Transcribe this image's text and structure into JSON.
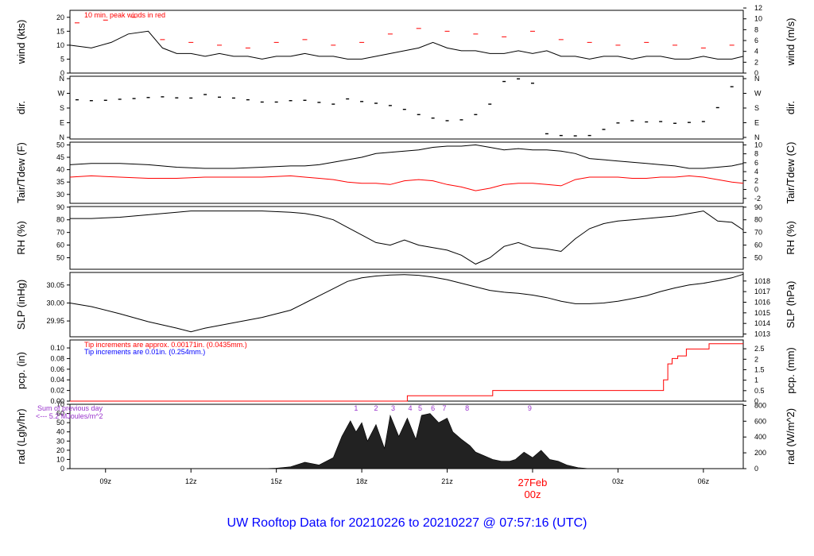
{
  "colors": {
    "axis": "#000000",
    "peak": "#ff0000",
    "note_blue": "#0000ff",
    "note_purple": "#9933cc",
    "footer": "#0000ff",
    "date": "#ff0000"
  },
  "footer_title": "UW Rooftop Data for 20210226  to  20210227 @ 07:57:16  (UTC)",
  "chart_data": [
    {
      "id": "wind",
      "type": "line",
      "ylabel_left": "wind (kts)",
      "ylabel_right": "wind (m/s)",
      "ylim": [
        0,
        22.5
      ],
      "left_ticks": [
        "0",
        "5",
        "10",
        "15",
        "20"
      ],
      "right_ylim": [
        0,
        11.57
      ],
      "right_ticks": [
        "0",
        "2",
        "4",
        "6",
        "8",
        "10",
        "12"
      ],
      "annotation": "10 min. peak winds in red",
      "series": [
        {
          "kind": "line",
          "color": "#000000",
          "x": [
            7.75,
            8.5,
            9.2,
            9.8,
            10.5,
            11.0,
            11.5,
            12.0,
            12.5,
            13.0,
            13.5,
            14.0,
            14.5,
            15.0,
            15.5,
            16.0,
            16.5,
            17.0,
            17.5,
            18.0,
            18.5,
            19.0,
            19.5,
            20.0,
            20.5,
            21.0,
            21.5,
            22.0,
            22.5,
            23.0,
            23.5,
            24.0,
            24.5,
            25.0,
            25.5,
            26.0,
            26.5,
            27.0,
            27.5,
            28.0,
            28.5,
            29.0,
            29.5,
            30.0,
            30.5,
            31.0,
            31.4
          ],
          "y": [
            10,
            9,
            11,
            14,
            15,
            9,
            7,
            7,
            6,
            7,
            6,
            6,
            5,
            6,
            6,
            7,
            6,
            6,
            5,
            5,
            6,
            7,
            8,
            9,
            11,
            9,
            8,
            8,
            7,
            7,
            8,
            7,
            8,
            6,
            6,
            5,
            6,
            6,
            5,
            6,
            6,
            5,
            5,
            6,
            5,
            5,
            6
          ]
        },
        {
          "kind": "dash",
          "color": "#ff0000",
          "x": [
            8,
            9,
            10,
            11,
            12,
            13,
            14,
            15,
            16,
            17,
            18,
            19,
            20,
            21,
            22,
            23,
            24,
            25,
            26,
            27,
            28,
            29,
            30,
            31
          ],
          "y": [
            18,
            19,
            20,
            12,
            11,
            10,
            9,
            11,
            12,
            10,
            11,
            14,
            16,
            15,
            14,
            13,
            15,
            12,
            11,
            10,
            11,
            10,
            9,
            10
          ]
        }
      ]
    },
    {
      "id": "dir",
      "type": "scatter",
      "ylabel_left": "dir.",
      "ylabel_right": "dir.",
      "ylim": [
        0,
        360
      ],
      "left_ticks": [
        "N",
        "E",
        "S",
        "W",
        "N"
      ],
      "right_ticks": [
        "N",
        "E",
        "S",
        "W",
        "N"
      ],
      "series": [
        {
          "kind": "points",
          "color": "#000000",
          "x": [
            8.0,
            8.5,
            9.0,
            9.5,
            10.0,
            10.5,
            11.0,
            11.5,
            12.0,
            12.5,
            13.0,
            13.5,
            14.0,
            14.5,
            15.0,
            15.5,
            16.0,
            16.5,
            17.0,
            17.5,
            18.0,
            18.5,
            19.0,
            19.5,
            20.0,
            20.5,
            21.0,
            21.5,
            22.0,
            22.5,
            23.0,
            23.5,
            24.0,
            24.5,
            25.0,
            25.5,
            26.0,
            26.5,
            27.0,
            27.5,
            28.0,
            28.5,
            29.0,
            29.5,
            30.0,
            30.5,
            31.0
          ],
          "y": [
            225,
            220,
            222,
            228,
            232,
            238,
            242,
            236,
            235,
            255,
            240,
            235,
            225,
            212,
            212,
            220,
            222,
            210,
            200,
            230,
            215,
            205,
            192,
            170,
            140,
            120,
            105,
            110,
            140,
            200,
            330,
            345,
            320,
            30,
            20,
            18,
            20,
            55,
            92,
            105,
            98,
            100,
            90,
            95,
            100,
            180,
            300
          ]
        }
      ]
    },
    {
      "id": "temp",
      "type": "line",
      "ylabel_left": "Tair/Tdew (F)",
      "ylabel_right": "Tair/Tdew (C)",
      "ylim": [
        26.4,
        51.1
      ],
      "left_ticks": [
        "30",
        "35",
        "40",
        "45",
        "50"
      ],
      "right_ylim": [
        -3.11,
        10.61
      ],
      "right_ticks": [
        "-2",
        "0",
        "2",
        "4",
        "6",
        "8",
        "10"
      ],
      "series": [
        {
          "kind": "line",
          "color": "#000000",
          "x": [
            7.75,
            8.5,
            9.5,
            10.5,
            11.5,
            12.5,
            13.5,
            14.5,
            15.5,
            16.0,
            16.5,
            17.0,
            17.5,
            18.0,
            18.5,
            19.0,
            19.5,
            20.0,
            20.5,
            21.0,
            21.5,
            22.0,
            22.5,
            23.0,
            23.5,
            24.0,
            24.5,
            25.0,
            25.5,
            26.0,
            26.5,
            27.0,
            27.5,
            28.0,
            28.5,
            29.0,
            29.5,
            30.0,
            30.5,
            31.0,
            31.4
          ],
          "y": [
            42,
            42.5,
            42.5,
            42,
            41,
            40.5,
            40.5,
            41,
            41.5,
            41.5,
            42,
            43,
            44,
            45,
            46.5,
            47,
            47.5,
            48,
            49,
            49.5,
            49.5,
            50,
            49,
            48,
            48.5,
            48,
            48,
            47.5,
            46.5,
            44.5,
            44,
            43.5,
            43,
            42.5,
            42,
            41.5,
            40.5,
            40.5,
            41,
            41.5,
            42.5
          ]
        },
        {
          "kind": "line",
          "color": "#ff0000",
          "x": [
            7.75,
            8.5,
            9.5,
            10.5,
            11.5,
            12.5,
            13.5,
            14.5,
            15.5,
            16.0,
            16.5,
            17.0,
            17.5,
            18.0,
            18.5,
            19.0,
            19.5,
            20.0,
            20.5,
            21.0,
            21.5,
            22.0,
            22.5,
            23.0,
            23.5,
            24.0,
            24.5,
            25.0,
            25.5,
            26.0,
            26.5,
            27.0,
            27.5,
            28.0,
            28.5,
            29.0,
            29.5,
            30.0,
            30.5,
            31.0,
            31.4
          ],
          "y": [
            37,
            37.5,
            37,
            36.5,
            36.5,
            37,
            37,
            37,
            37.5,
            37,
            36.5,
            36,
            35,
            34.5,
            34.5,
            34,
            35.5,
            36,
            35.5,
            34,
            33,
            31.5,
            32.5,
            34,
            34.5,
            34.5,
            34,
            33.5,
            36,
            37,
            37,
            37,
            36.5,
            36.5,
            37,
            37,
            37.5,
            37,
            36,
            35,
            34.5
          ]
        }
      ]
    },
    {
      "id": "rh",
      "type": "line",
      "ylabel_left": "RH (%)",
      "ylabel_right": "RH (%)",
      "ylim": [
        40.9,
        90.5
      ],
      "left_ticks": [
        "50",
        "60",
        "70",
        "80",
        "90"
      ],
      "right_ticks": [
        "50",
        "60",
        "70",
        "80",
        "90"
      ],
      "series": [
        {
          "kind": "line",
          "color": "#000000",
          "x": [
            7.75,
            8.5,
            9.5,
            10.5,
            11.5,
            12.0,
            12.5,
            13.5,
            14.5,
            15.5,
            16.0,
            16.5,
            17.0,
            17.5,
            18.0,
            18.5,
            19.0,
            19.5,
            20.0,
            20.5,
            21.0,
            21.5,
            22.0,
            22.5,
            23.0,
            23.5,
            24.0,
            24.5,
            25.0,
            25.5,
            26.0,
            26.5,
            27.0,
            27.5,
            28.0,
            28.5,
            29.0,
            29.5,
            30.0,
            30.5,
            31.0,
            31.4
          ],
          "y": [
            81,
            81,
            82,
            84,
            86,
            87,
            87,
            87,
            87,
            86,
            85,
            83,
            80,
            74,
            68,
            62,
            60,
            64,
            60,
            58,
            56,
            52,
            45,
            50,
            59,
            62,
            58,
            57,
            55,
            65,
            73,
            77,
            79,
            80,
            81,
            82,
            83,
            85,
            87,
            79,
            78,
            72
          ]
        }
      ]
    },
    {
      "id": "slp",
      "type": "line",
      "ylabel_left": "SLP (inHg)",
      "ylabel_right": "SLP (hPa)",
      "ylim": [
        29.906,
        30.085
      ],
      "left_ticks": [
        "29.95",
        "30.00",
        "30.05"
      ],
      "right_ylim": [
        1012.74,
        1018.81
      ],
      "right_ticks": [
        "1013",
        "1014",
        "1015",
        "1016",
        "1017",
        "1018"
      ],
      "series": [
        {
          "kind": "line",
          "color": "#000000",
          "x": [
            7.75,
            8.5,
            9.5,
            10.5,
            11.5,
            12.0,
            12.5,
            13.5,
            14.5,
            15.5,
            16.0,
            16.5,
            17.0,
            17.5,
            18.0,
            18.5,
            19.0,
            19.5,
            20.0,
            20.5,
            21.0,
            21.5,
            22.0,
            22.5,
            23.0,
            23.5,
            24.0,
            24.5,
            25.0,
            25.5,
            26.0,
            26.5,
            27.0,
            27.5,
            28.0,
            28.5,
            29.0,
            29.5,
            30.0,
            30.5,
            31.0,
            31.4
          ],
          "y": [
            30.0,
            29.99,
            29.97,
            29.948,
            29.93,
            29.92,
            29.93,
            29.945,
            29.96,
            29.98,
            30.0,
            30.02,
            30.04,
            30.06,
            30.07,
            30.075,
            30.078,
            30.079,
            30.077,
            30.072,
            30.065,
            30.055,
            30.045,
            30.035,
            30.03,
            30.027,
            30.022,
            30.015,
            30.005,
            29.998,
            29.998,
            30.0,
            30.005,
            30.012,
            30.02,
            30.032,
            30.042,
            30.05,
            30.055,
            30.062,
            30.07,
            30.08
          ]
        }
      ]
    },
    {
      "id": "pcp",
      "type": "line",
      "ylabel_left": "pcp. (in)",
      "ylabel_right": "pcp. (mm)",
      "ylim": [
        0,
        0.115
      ],
      "left_ticks": [
        "0.00",
        "0.02",
        "0.04",
        "0.06",
        "0.08",
        "0.10"
      ],
      "right_ylim": [
        0,
        2.921
      ],
      "right_ticks": [
        "0",
        "0.5",
        "1",
        "1.5",
        "2",
        "2.5"
      ],
      "notes": [
        {
          "text": "Tip increments are approx. 0.00171in. (0.0435mm.)",
          "color": "#ff0000"
        },
        {
          "text": "Tip increments are 0.01in. (0.254mm.)",
          "color": "#0000ff"
        }
      ],
      "series": [
        {
          "kind": "step",
          "color": "#ff0000",
          "x": [
            7.75,
            19.6,
            19.6,
            22.6,
            22.6,
            28.6,
            28.6,
            28.75,
            28.75,
            28.9,
            28.9,
            29.1,
            29.1,
            29.4,
            29.4,
            30.2,
            30.2,
            31.4
          ],
          "y": [
            0.0,
            0.0,
            0.01,
            0.01,
            0.02,
            0.02,
            0.04,
            0.04,
            0.07,
            0.07,
            0.08,
            0.08,
            0.085,
            0.085,
            0.098,
            0.098,
            0.108,
            0.108
          ]
        }
      ]
    },
    {
      "id": "rad",
      "type": "area",
      "ylabel_left": "rad (Lgly/hr)",
      "ylabel_right": "rad (W/m^2)",
      "ylim": [
        0,
        70
      ],
      "left_ticks": [
        "0",
        "10",
        "20",
        "30",
        "40",
        "50",
        "60",
        "70"
      ],
      "right_ylim": [
        0,
        813.9
      ],
      "right_ticks": [
        "0",
        "200",
        "400",
        "600",
        "800"
      ],
      "notes": [
        {
          "text": "Sum of previous day",
          "color": "#9933cc"
        },
        {
          "text": "<--- 5.2 MJoules/m^2",
          "color": "#9933cc"
        }
      ],
      "hour_markers": [
        "1",
        "2",
        "3",
        "4",
        "5",
        "6",
        "7",
        "8",
        "9"
      ],
      "hour_marker_x": [
        17.8,
        18.5,
        19.1,
        19.7,
        20.05,
        20.5,
        20.9,
        21.7,
        23.9
      ],
      "series": [
        {
          "kind": "area",
          "color": "#000000",
          "x": [
            14.5,
            15.0,
            15.5,
            16.0,
            16.5,
            17.0,
            17.3,
            17.6,
            17.8,
            18.0,
            18.2,
            18.5,
            18.8,
            19.0,
            19.3,
            19.6,
            19.9,
            20.1,
            20.4,
            20.7,
            21.0,
            21.2,
            21.5,
            21.8,
            22.0,
            22.3,
            22.6,
            22.9,
            23.2,
            23.4,
            23.7,
            24.0,
            24.3,
            24.6,
            24.9,
            25.2,
            25.6,
            26.0
          ],
          "y": [
            0,
            0.5,
            2,
            7,
            4,
            12,
            35,
            52,
            40,
            50,
            30,
            48,
            22,
            58,
            35,
            55,
            32,
            58,
            60,
            50,
            55,
            40,
            32,
            25,
            18,
            14,
            10,
            8,
            8,
            10,
            18,
            12,
            20,
            10,
            8,
            4,
            1,
            0
          ]
        }
      ]
    }
  ],
  "x_axis": {
    "x_hours": [
      9,
      12,
      15,
      18,
      21,
      24,
      27,
      30
    ],
    "tick_labels": [
      "09z",
      "12z",
      "15z",
      "18z",
      "21z",
      "00z",
      "03z",
      "06z"
    ],
    "date_label": "27Feb",
    "date_label_x": 24
  }
}
